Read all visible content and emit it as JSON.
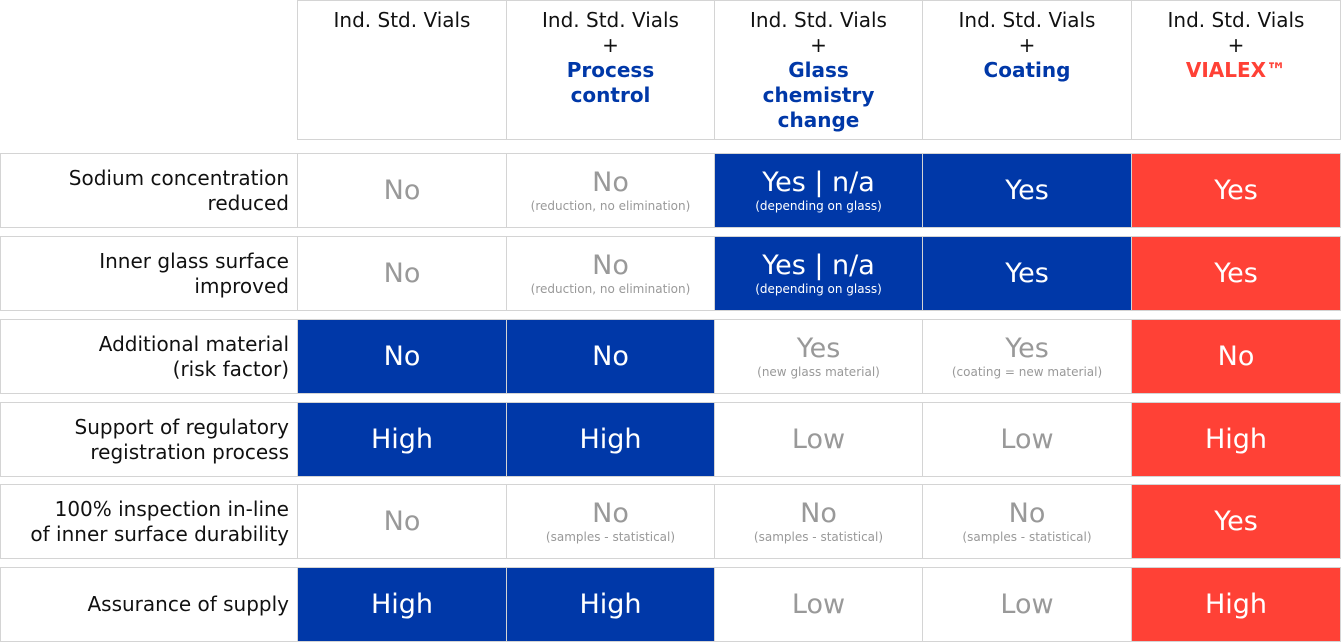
{
  "header": {
    "columns": [
      {
        "base": "Ind. Std. Vials"
      },
      {
        "base": "Ind. Std. Vials",
        "plus": "+",
        "highlight": [
          "Process",
          "control"
        ],
        "color": "blue"
      },
      {
        "base": "Ind. Std. Vials",
        "plus": "+",
        "highlight": [
          "Glass",
          "chemistry",
          "change"
        ],
        "color": "blue"
      },
      {
        "base": "Ind. Std. Vials",
        "plus": "+",
        "highlight": [
          "Coating"
        ],
        "color": "blue"
      },
      {
        "base": "Ind. Std. Vials",
        "plus": "+",
        "highlight": [
          "VIALEX™"
        ],
        "color": "red"
      }
    ]
  },
  "table": {
    "rows": [
      {
        "label": [
          "Sodium concentration",
          "reduced"
        ],
        "cells": [
          {
            "text": "No",
            "style": "white"
          },
          {
            "text": "No",
            "note": "(reduction, no elimination)",
            "style": "white"
          },
          {
            "text": "Yes | n/a",
            "note": "(depending on glass)",
            "style": "blue"
          },
          {
            "text": "Yes",
            "style": "blue"
          },
          {
            "text": "Yes",
            "style": "red"
          }
        ]
      },
      {
        "label": [
          "Inner glass surface",
          "improved"
        ],
        "cells": [
          {
            "text": "No",
            "style": "white"
          },
          {
            "text": "No",
            "note": "(reduction, no elimination)",
            "style": "white"
          },
          {
            "text": "Yes | n/a",
            "note": "(depending on glass)",
            "style": "blue"
          },
          {
            "text": "Yes",
            "style": "blue"
          },
          {
            "text": "Yes",
            "style": "red"
          }
        ]
      },
      {
        "label": [
          "Additional material",
          "(risk factor)"
        ],
        "cells": [
          {
            "text": "No",
            "style": "blue"
          },
          {
            "text": "No",
            "style": "blue"
          },
          {
            "text": "Yes",
            "note": "(new glass material)",
            "style": "white"
          },
          {
            "text": "Yes",
            "note": "(coating = new material)",
            "style": "white"
          },
          {
            "text": "No",
            "style": "red"
          }
        ]
      },
      {
        "label": [
          "Support of regulatory",
          "registration process"
        ],
        "cells": [
          {
            "text": "High",
            "style": "blue"
          },
          {
            "text": "High",
            "style": "blue"
          },
          {
            "text": "Low",
            "style": "white"
          },
          {
            "text": "Low",
            "style": "white"
          },
          {
            "text": "High",
            "style": "red"
          }
        ]
      },
      {
        "label": [
          "100% inspection in-line",
          "of inner surface durability"
        ],
        "cells": [
          {
            "text": "No",
            "style": "white"
          },
          {
            "text": "No",
            "note": "(samples - statistical)",
            "style": "white"
          },
          {
            "text": "No",
            "note": "(samples - statistical)",
            "style": "white"
          },
          {
            "text": "No",
            "note": "(samples - statistical)",
            "style": "white"
          },
          {
            "text": "Yes",
            "style": "red"
          }
        ]
      },
      {
        "label": [
          "Assurance of supply"
        ],
        "cells": [
          {
            "text": "High",
            "style": "blue"
          },
          {
            "text": "High",
            "style": "blue"
          },
          {
            "text": "Low",
            "style": "white"
          },
          {
            "text": "Low",
            "style": "white"
          },
          {
            "text": "High",
            "style": "red"
          }
        ]
      }
    ]
  }
}
